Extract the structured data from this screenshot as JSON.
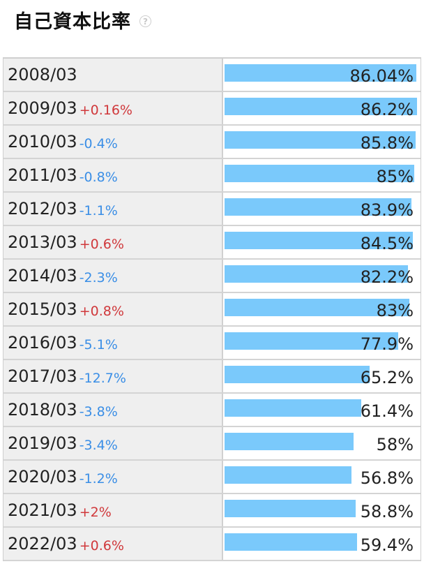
{
  "header": {
    "title": "自己資本比率",
    "help_icon": "question-circle-icon"
  },
  "colors": {
    "bar": "#7ac9fb",
    "increase": "#d0383b",
    "decrease": "#3a8ee6"
  },
  "chart_data": {
    "type": "bar",
    "orientation": "horizontal",
    "title": "自己資本比率",
    "xlim": [
      0,
      100
    ],
    "categories": [
      "2008/03",
      "2009/03",
      "2010/03",
      "2011/03",
      "2012/03",
      "2013/03",
      "2014/03",
      "2015/03",
      "2016/03",
      "2017/03",
      "2018/03",
      "2019/03",
      "2020/03",
      "2021/03",
      "2022/03"
    ],
    "values": [
      86.04,
      86.2,
      85.8,
      85,
      83.9,
      84.5,
      82.2,
      83,
      77.9,
      65.2,
      61.4,
      58,
      56.8,
      58.8,
      59.4
    ],
    "value_labels": [
      "86.04%",
      "86.2%",
      "85.8%",
      "85%",
      "83.9%",
      "84.5%",
      "82.2%",
      "83%",
      "77.9%",
      "65.2%",
      "61.4%",
      "58%",
      "56.8%",
      "58.8%",
      "59.4%"
    ],
    "changes": [
      "",
      "+0.16%",
      "-0.4%",
      "-0.8%",
      "-1.1%",
      "+0.6%",
      "-2.3%",
      "+0.8%",
      "-5.1%",
      "-12.7%",
      "-3.8%",
      "-3.4%",
      "-1.2%",
      "+2%",
      "+0.6%"
    ]
  }
}
